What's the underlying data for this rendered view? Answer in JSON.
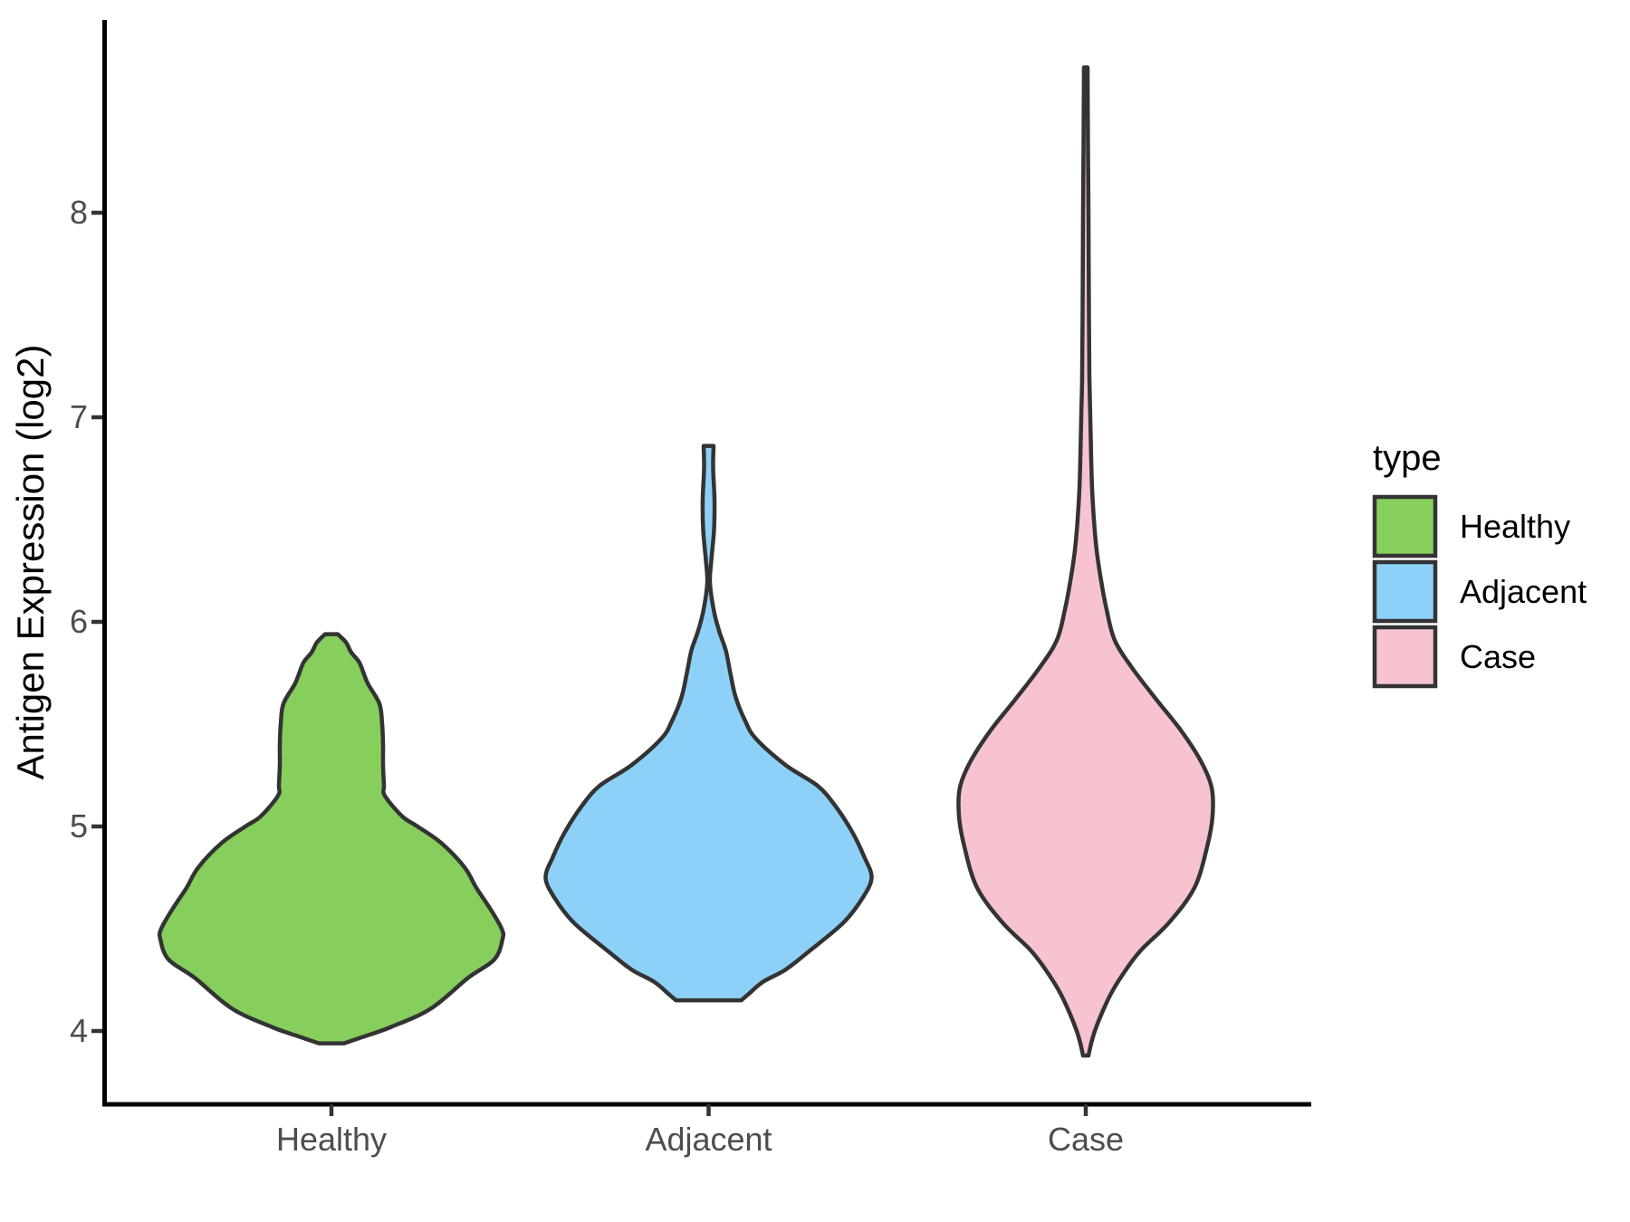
{
  "figure": {
    "background": "#ffffff",
    "outline_color": "#333333",
    "axis_line_color": "#000000",
    "tick_color": "#333333",
    "tick_label_color": "#4d4d4d",
    "legend": {
      "title": "type",
      "entries": [
        {
          "label": "Healthy",
          "color": "#86CF5C"
        },
        {
          "label": "Adjacent",
          "color": "#8ED1F8"
        },
        {
          "label": "Case",
          "color": "#F6C3CE"
        }
      ]
    }
  },
  "chart_data": {
    "type": "violin",
    "title": "",
    "xlabel": "",
    "ylabel": "Antigen Expression (log2)",
    "ylim": [
      3.6,
      8.9
    ],
    "yticks": [
      4,
      5,
      6,
      7,
      8
    ],
    "ytick_labels_desc": [
      "8",
      "7",
      "6",
      "5",
      "4"
    ],
    "categories": [
      "Healthy",
      "Adjacent",
      "Case"
    ],
    "legend_title": "type",
    "legend_position": "right",
    "grid": false,
    "series": [
      {
        "name": "Healthy",
        "fill": "#86CF5C",
        "outline": "#333333",
        "y_range": [
          3.94,
          5.94
        ],
        "peak_at": 4.5,
        "profile": [
          [
            5.94,
            7
          ],
          [
            5.9,
            16
          ],
          [
            5.85,
            22
          ],
          [
            5.8,
            31
          ],
          [
            5.7,
            40
          ],
          [
            5.6,
            53
          ],
          [
            5.5,
            56
          ],
          [
            5.4,
            57
          ],
          [
            5.3,
            57
          ],
          [
            5.2,
            58
          ],
          [
            5.15,
            59
          ],
          [
            5.05,
            78
          ],
          [
            5.0,
            95
          ],
          [
            4.92,
            121
          ],
          [
            4.8,
            147
          ],
          [
            4.7,
            160
          ],
          [
            4.6,
            175
          ],
          [
            4.5,
            188
          ],
          [
            4.45,
            189
          ],
          [
            4.35,
            180
          ],
          [
            4.26,
            151
          ],
          [
            4.11,
            110
          ],
          [
            4.02,
            66
          ],
          [
            3.97,
            34
          ],
          [
            3.94,
            14
          ]
        ]
      },
      {
        "name": "Adjacent",
        "fill": "#8ED1F8",
        "outline": "#333333",
        "y_range": [
          4.15,
          6.86
        ],
        "peak_at": 4.75,
        "profile": [
          [
            6.86,
            5.5
          ],
          [
            6.75,
            5
          ],
          [
            6.6,
            6.5
          ],
          [
            6.45,
            6
          ],
          [
            6.3,
            3
          ],
          [
            6.19,
            1.5
          ],
          [
            6.05,
            6
          ],
          [
            5.95,
            12
          ],
          [
            5.86,
            19
          ],
          [
            5.75,
            24
          ],
          [
            5.63,
            30
          ],
          [
            5.52,
            40
          ],
          [
            5.43,
            52
          ],
          [
            5.3,
            85
          ],
          [
            5.2,
            120
          ],
          [
            5.1,
            140
          ],
          [
            4.97,
            159
          ],
          [
            4.85,
            172
          ],
          [
            4.75,
            180
          ],
          [
            4.65,
            170
          ],
          [
            4.53,
            149
          ],
          [
            4.39,
            111
          ],
          [
            4.3,
            85
          ],
          [
            4.24,
            60
          ],
          [
            4.18,
            44
          ],
          [
            4.15,
            36
          ]
        ]
      },
      {
        "name": "Case",
        "fill": "#F6C3CE",
        "outline": "#333333",
        "y_range": [
          3.88,
          8.71
        ],
        "peak_at": 5.05,
        "profile": [
          [
            8.71,
            2
          ],
          [
            8.3,
            2.5
          ],
          [
            8.0,
            3
          ],
          [
            7.5,
            3.5
          ],
          [
            7.2,
            4
          ],
          [
            7.0,
            5
          ],
          [
            6.8,
            6
          ],
          [
            6.65,
            7
          ],
          [
            6.5,
            9
          ],
          [
            6.35,
            12
          ],
          [
            6.2,
            17
          ],
          [
            6.06,
            23
          ],
          [
            5.91,
            32
          ],
          [
            5.77,
            52
          ],
          [
            5.62,
            78
          ],
          [
            5.47,
            105
          ],
          [
            5.32,
            127
          ],
          [
            5.19,
            139
          ],
          [
            5.05,
            140
          ],
          [
            4.9,
            134
          ],
          [
            4.7,
            120
          ],
          [
            4.53,
            92
          ],
          [
            4.4,
            62
          ],
          [
            4.31,
            46
          ],
          [
            4.2,
            30
          ],
          [
            4.09,
            18
          ],
          [
            4.0,
            10
          ],
          [
            3.94,
            6
          ],
          [
            3.88,
            3
          ]
        ]
      }
    ]
  }
}
